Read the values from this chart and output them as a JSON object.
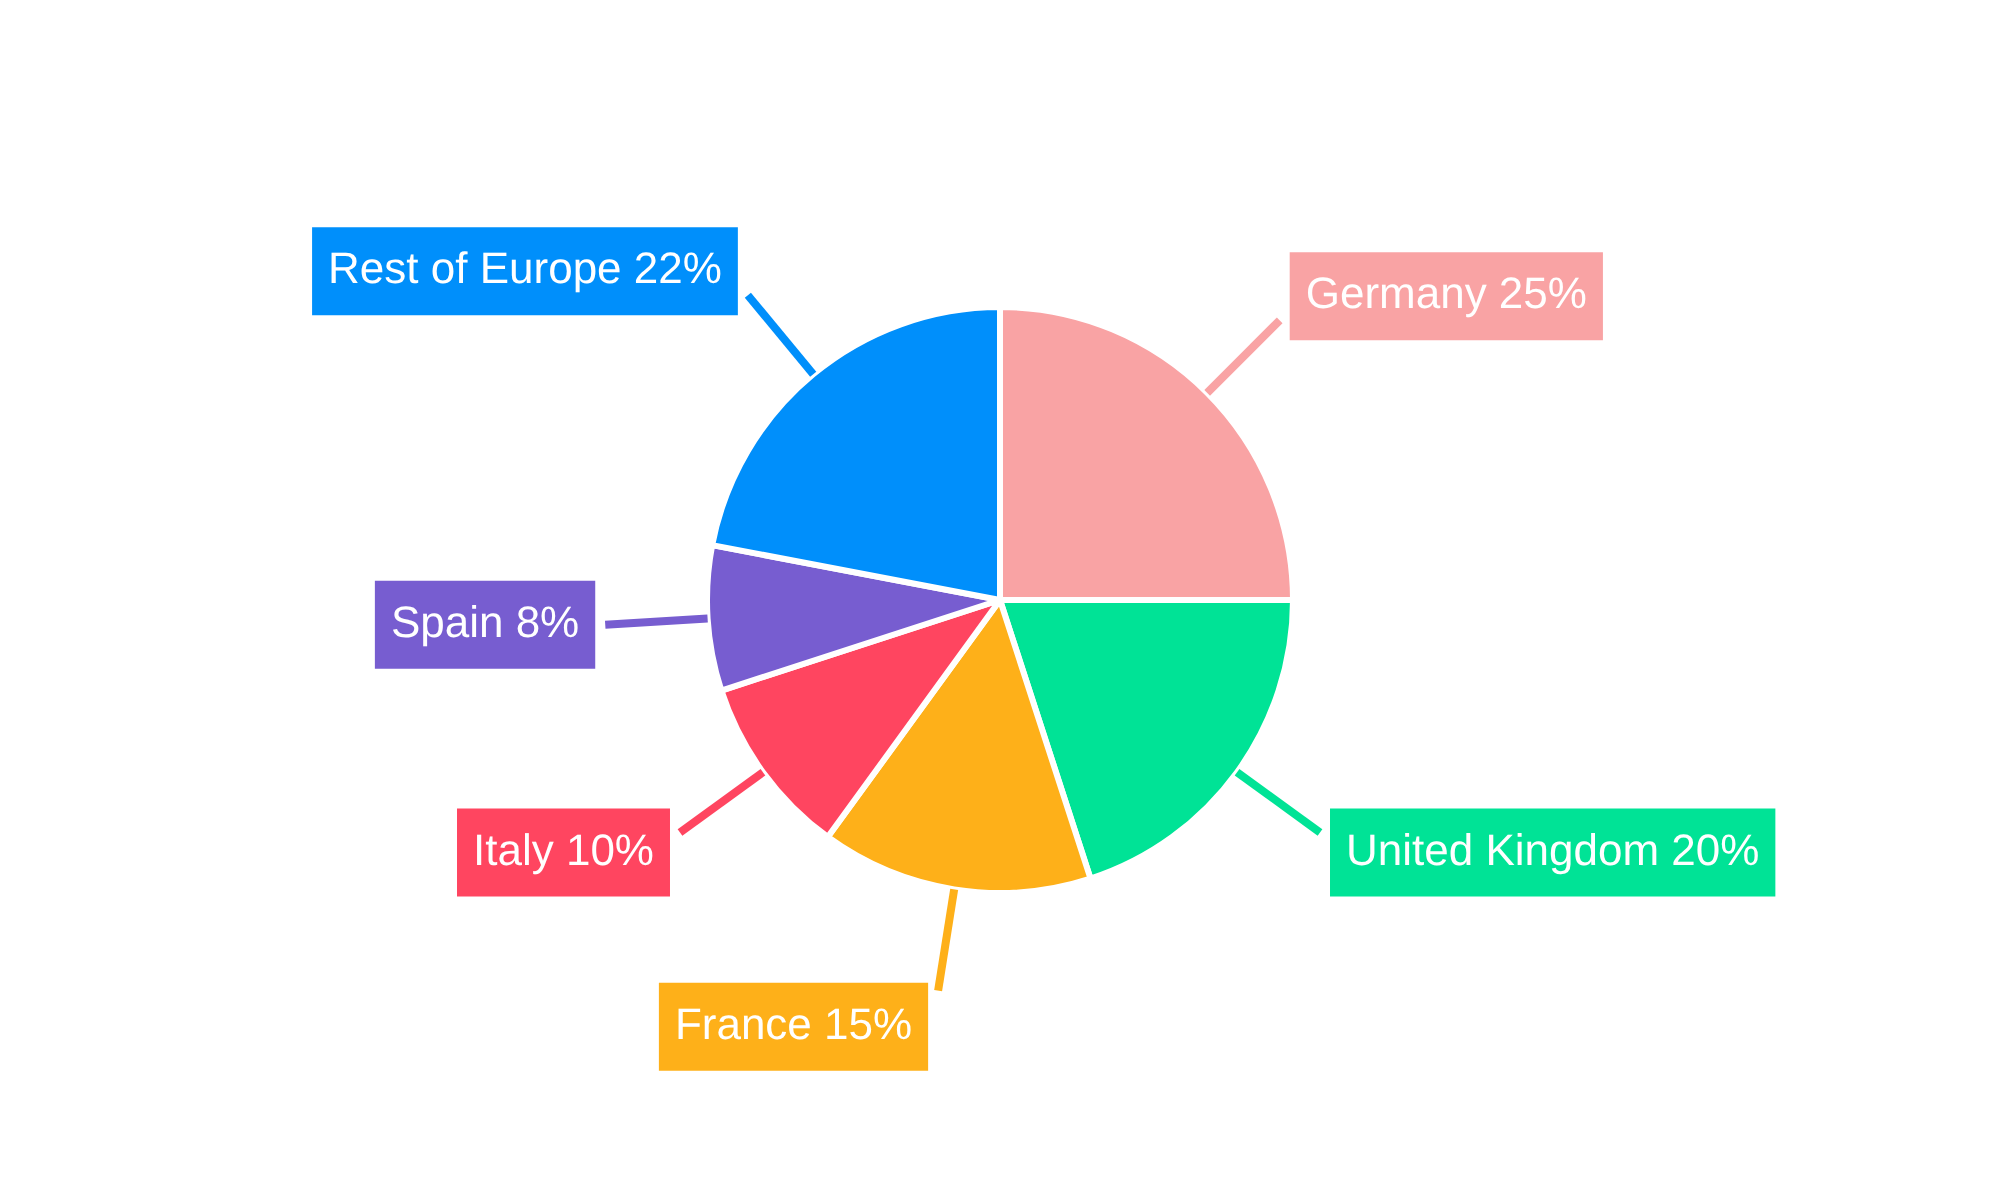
{
  "chart_data": {
    "type": "pie",
    "categories": [
      "Germany",
      "United Kingdom",
      "France",
      "Italy",
      "Spain",
      "Rest of Europe"
    ],
    "values": [
      25,
      20,
      15,
      10,
      8,
      22
    ],
    "value_labels": [
      "25%",
      "20%",
      "15%",
      "10%",
      "8%",
      "22%"
    ],
    "colors": [
      "#f9a3a4",
      "#00e396",
      "#feb019",
      "#ff4560",
      "#775dd0",
      "#008ffb"
    ],
    "legend": false
  }
}
